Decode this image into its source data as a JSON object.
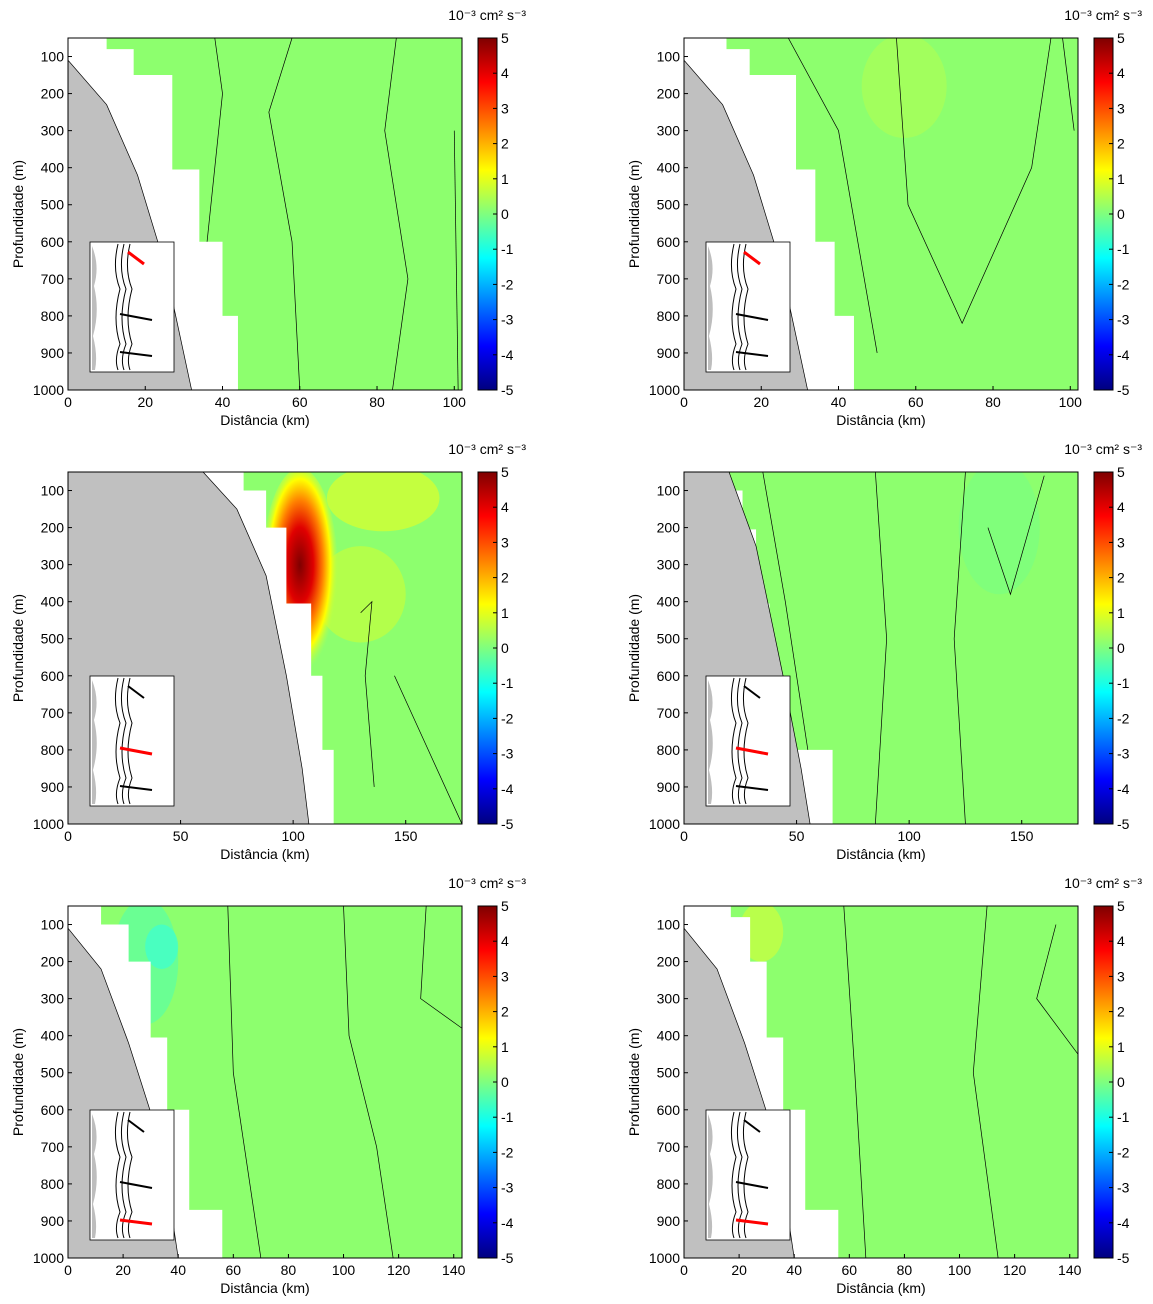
{
  "colorbar": {
    "unit_label": "10⁻³ cm² s⁻³",
    "ticks": [
      5,
      4,
      3,
      2,
      1,
      0,
      -1,
      -2,
      -3,
      -4,
      -5
    ],
    "range": [
      -5,
      5
    ],
    "colormap": "jet",
    "stops": [
      "#00007f",
      "#0000ff",
      "#007fff",
      "#00ffff",
      "#7fff7f",
      "#ffff00",
      "#ff7f00",
      "#ff0000",
      "#7f0000"
    ]
  },
  "colors": {
    "bathymetry_fill": "#c0c0c0",
    "background_field": "#8dff6e",
    "highlight_section": "#ff0000",
    "other_sections": "#000000"
  },
  "chart_data": [
    {
      "type": "heatmap",
      "panel": "row1-left",
      "xlabel": "Distância (km)",
      "ylabel": "Profundidade (m)",
      "xlim": [
        0,
        102
      ],
      "ylim": [
        50,
        1000
      ],
      "y_reversed": true,
      "xticks": [
        0,
        20,
        40,
        60,
        80,
        100
      ],
      "yticks": [
        100,
        200,
        300,
        400,
        500,
        600,
        700,
        800,
        900,
        1000
      ],
      "field_range": [
        -0.5,
        0.5
      ],
      "highlighted_section": 1
    },
    {
      "type": "heatmap",
      "panel": "row1-right",
      "xlabel": "Distância (km)",
      "ylabel": "Profundidade (m)",
      "xlim": [
        0,
        102
      ],
      "ylim": [
        50,
        1000
      ],
      "y_reversed": true,
      "xticks": [
        0,
        20,
        40,
        60,
        80,
        100
      ],
      "yticks": [
        100,
        200,
        300,
        400,
        500,
        600,
        700,
        800,
        900,
        1000
      ],
      "field_range": [
        -0.5,
        0.7
      ],
      "highlighted_section": 1
    },
    {
      "type": "heatmap",
      "panel": "row2-left",
      "xlabel": "Distância (km)",
      "ylabel": "Profundidade (m)",
      "xlim": [
        0,
        175
      ],
      "ylim": [
        50,
        1000
      ],
      "y_reversed": true,
      "xticks": [
        0,
        50,
        100,
        150
      ],
      "yticks": [
        100,
        200,
        300,
        400,
        500,
        600,
        700,
        800,
        900,
        1000
      ],
      "field_range": [
        -0.3,
        5
      ],
      "max_value": 5,
      "max_location": {
        "x": 100,
        "y": 200
      },
      "highlighted_section": 2
    },
    {
      "type": "heatmap",
      "panel": "row2-right",
      "xlabel": "Distância (km)",
      "ylabel": "Profundidade (m)",
      "xlim": [
        0,
        175
      ],
      "ylim": [
        50,
        1000
      ],
      "y_reversed": true,
      "xticks": [
        0,
        50,
        100,
        150
      ],
      "yticks": [
        100,
        200,
        300,
        400,
        500,
        600,
        700,
        800,
        900,
        1000
      ],
      "field_range": [
        -0.3,
        1
      ],
      "highlighted_section": 2
    },
    {
      "type": "heatmap",
      "panel": "row3-left",
      "xlabel": "Distância (km)",
      "ylabel": "Profundidade (m)",
      "xlim": [
        0,
        143
      ],
      "ylim": [
        50,
        1000
      ],
      "y_reversed": true,
      "xticks": [
        0,
        20,
        40,
        60,
        80,
        100,
        120,
        140
      ],
      "yticks": [
        100,
        200,
        300,
        400,
        500,
        600,
        700,
        800,
        900,
        1000
      ],
      "field_range": [
        -1,
        0.5
      ],
      "highlighted_section": 3
    },
    {
      "type": "heatmap",
      "panel": "row3-right",
      "xlabel": "Distância (km)",
      "ylabel": "Profundidade (m)",
      "xlim": [
        0,
        143
      ],
      "ylim": [
        50,
        1000
      ],
      "y_reversed": true,
      "xticks": [
        0,
        20,
        40,
        60,
        80,
        100,
        120,
        140
      ],
      "yticks": [
        100,
        200,
        300,
        400,
        500,
        600,
        700,
        800,
        900,
        1000
      ],
      "field_range": [
        -0.3,
        1.2
      ],
      "highlighted_section": 3
    }
  ]
}
